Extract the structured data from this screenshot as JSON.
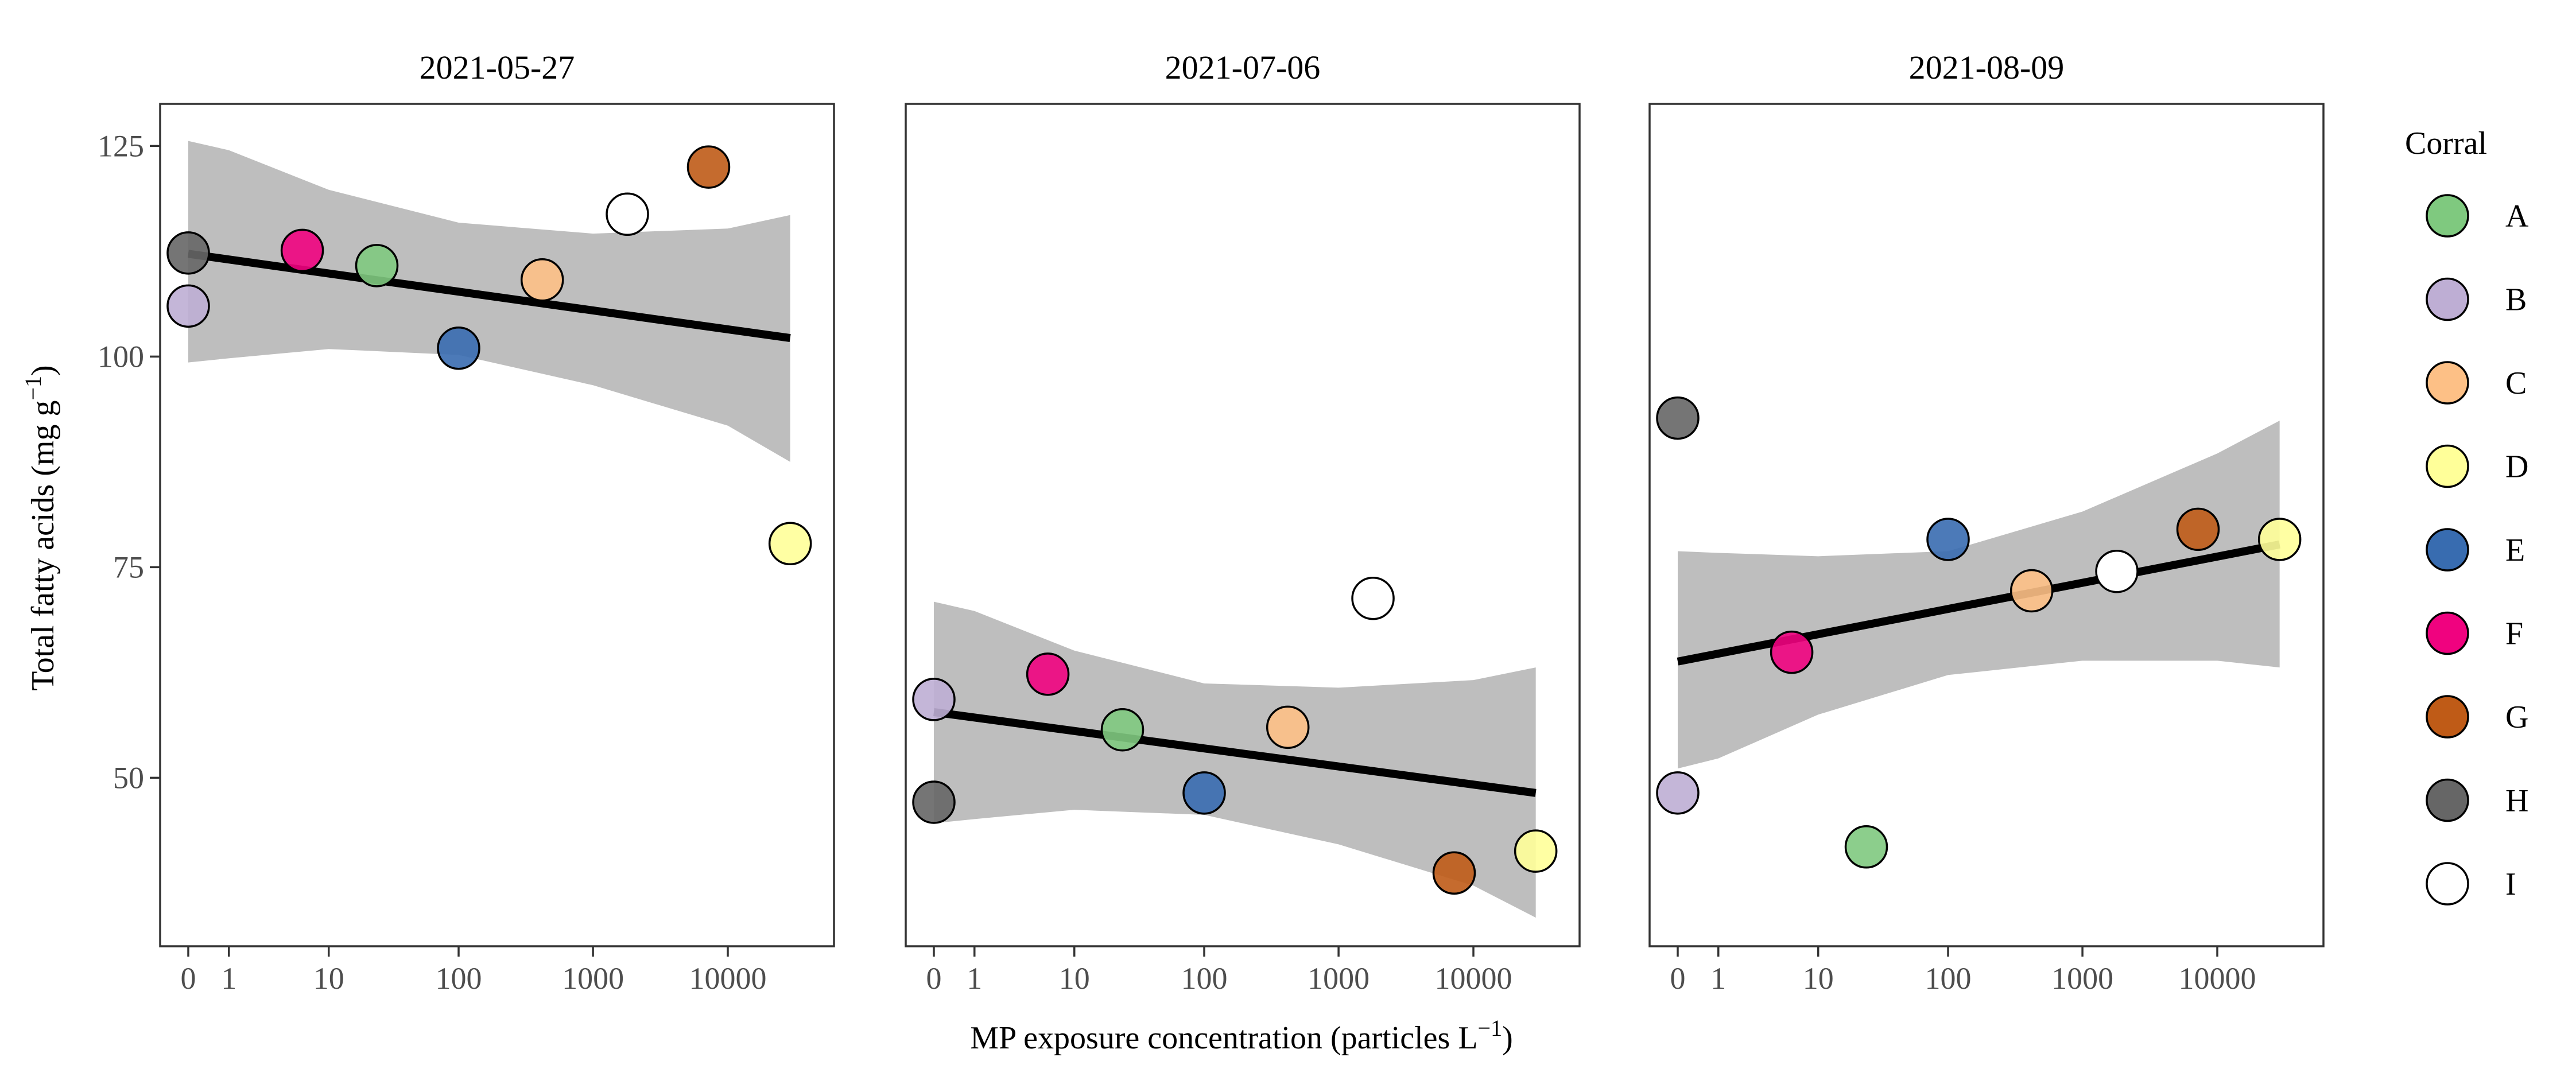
{
  "chart_data": {
    "type": "scatter",
    "xlabel": {
      "main": "MP exposure concentration (particles L",
      "sup": "−1",
      "close": ")"
    },
    "ylabel": {
      "main": "Total fatty acids (mg g",
      "sup": "−1",
      "close": ")"
    },
    "x_scale": "pseudo-log10",
    "x_ticks": [
      0,
      1,
      10,
      100,
      1000,
      10000
    ],
    "x_tick_labels": [
      "0",
      "1",
      "10",
      "100",
      "1000",
      "10000"
    ],
    "y_ticks": [
      50,
      75,
      100,
      125
    ],
    "y_tick_labels": [
      "50",
      "75",
      "100",
      "125"
    ],
    "ylim": [
      30,
      130
    ],
    "legend": {
      "title": "Corral",
      "position": "right",
      "entries": [
        {
          "label": "A",
          "color": "#7fc97f"
        },
        {
          "label": "B",
          "color": "#beaed4"
        },
        {
          "label": "C",
          "color": "#fdc086"
        },
        {
          "label": "D",
          "color": "#ffff99"
        },
        {
          "label": "E",
          "color": "#386cb0"
        },
        {
          "label": "F",
          "color": "#f0027f"
        },
        {
          "label": "G",
          "color": "#bf5b17"
        },
        {
          "label": "H",
          "color": "#666666"
        },
        {
          "label": "I",
          "color": "#ffffff"
        }
      ]
    },
    "panels": [
      {
        "title": "2021-05-27",
        "points": [
          {
            "corral": "H",
            "x": 0,
            "y": 112.3
          },
          {
            "corral": "B",
            "x": 0,
            "y": 106
          },
          {
            "corral": "F",
            "x": 6,
            "y": 112.6
          },
          {
            "corral": "A",
            "x": 24,
            "y": 110.8
          },
          {
            "corral": "E",
            "x": 100,
            "y": 101
          },
          {
            "corral": "C",
            "x": 420,
            "y": 109.1
          },
          {
            "corral": "I",
            "x": 1800,
            "y": 116.9
          },
          {
            "corral": "G",
            "x": 7200,
            "y": 122.5
          },
          {
            "corral": "D",
            "x": 29000,
            "y": 77.8
          }
        ],
        "trend": {
          "y_start": 112.2,
          "y_end": 102.2
        },
        "ribbon": [
          {
            "x": 0,
            "lo": 99.3,
            "hi": 125.6
          },
          {
            "x": 1,
            "lo": 99.8,
            "hi": 124.5
          },
          {
            "x": 10,
            "lo": 100.9,
            "hi": 119.8
          },
          {
            "x": 100,
            "lo": 100.2,
            "hi": 115.9
          },
          {
            "x": 1000,
            "lo": 96.6,
            "hi": 114.6
          },
          {
            "x": 10000,
            "lo": 91.8,
            "hi": 115.2
          },
          {
            "x": 29000,
            "lo": 87.5,
            "hi": 116.8
          }
        ]
      },
      {
        "title": "2021-07-06",
        "points": [
          {
            "corral": "B",
            "x": 0,
            "y": 59.3
          },
          {
            "corral": "H",
            "x": 0,
            "y": 47.1
          },
          {
            "corral": "F",
            "x": 6,
            "y": 62.3
          },
          {
            "corral": "A",
            "x": 24,
            "y": 55.7
          },
          {
            "corral": "E",
            "x": 100,
            "y": 48.2
          },
          {
            "corral": "C",
            "x": 420,
            "y": 56
          },
          {
            "corral": "I",
            "x": 1800,
            "y": 71.3
          },
          {
            "corral": "G",
            "x": 7200,
            "y": 38.7
          },
          {
            "corral": "D",
            "x": 29000,
            "y": 41.3
          }
        ],
        "trend": {
          "y_start": 57.8,
          "y_end": 48.2
        },
        "ribbon": [
          {
            "x": 0,
            "lo": 44.6,
            "hi": 70.9
          },
          {
            "x": 1,
            "lo": 45.1,
            "hi": 69.8
          },
          {
            "x": 10,
            "lo": 46.2,
            "hi": 65.1
          },
          {
            "x": 100,
            "lo": 45.6,
            "hi": 61.2
          },
          {
            "x": 1000,
            "lo": 42.1,
            "hi": 60.7
          },
          {
            "x": 10000,
            "lo": 37.2,
            "hi": 61.6
          },
          {
            "x": 29000,
            "lo": 33.4,
            "hi": 63.1
          }
        ]
      },
      {
        "title": "2021-08-09",
        "points": [
          {
            "corral": "H",
            "x": 0,
            "y": 92.7
          },
          {
            "corral": "B",
            "x": 0,
            "y": 48.2
          },
          {
            "corral": "F",
            "x": 6,
            "y": 64.9
          },
          {
            "corral": "A",
            "x": 24,
            "y": 41.8
          },
          {
            "corral": "E",
            "x": 100,
            "y": 78.3
          },
          {
            "corral": "C",
            "x": 420,
            "y": 72.2
          },
          {
            "corral": "I",
            "x": 1800,
            "y": 74.5
          },
          {
            "corral": "G",
            "x": 7200,
            "y": 79.5
          },
          {
            "corral": "D",
            "x": 29000,
            "y": 78.3
          }
        ],
        "trend": {
          "y_start": 63.8,
          "y_end": 77.7
        },
        "ribbon": [
          {
            "x": 0,
            "lo": 51.1,
            "hi": 76.9
          },
          {
            "x": 1,
            "lo": 52.3,
            "hi": 76.7
          },
          {
            "x": 10,
            "lo": 57.5,
            "hi": 76.3
          },
          {
            "x": 100,
            "lo": 62.2,
            "hi": 76.9
          },
          {
            "x": 1000,
            "lo": 63.9,
            "hi": 81.6
          },
          {
            "x": 10000,
            "lo": 63.9,
            "hi": 88.5
          },
          {
            "x": 29000,
            "lo": 63.1,
            "hi": 92.4
          }
        ]
      }
    ]
  }
}
